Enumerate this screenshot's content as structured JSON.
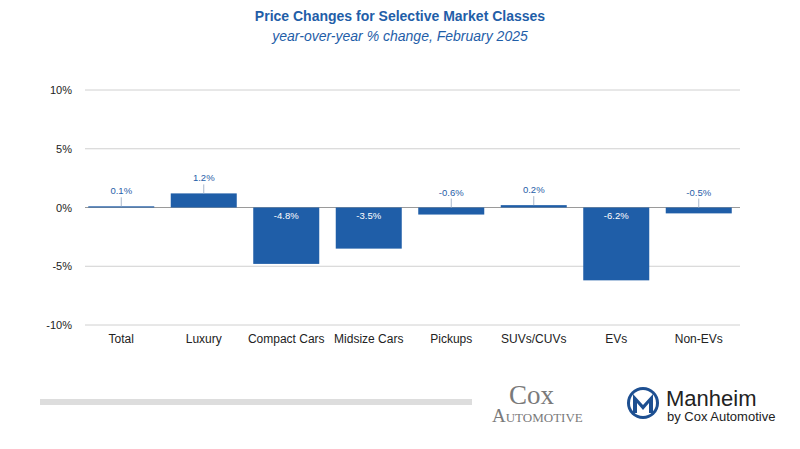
{
  "chart_data": {
    "type": "bar",
    "title": "Price Changes for Selective Market Classes",
    "subtitle": "year-over-year % change, February 2025",
    "categories": [
      "Total",
      "Luxury",
      "Compact Cars",
      "Midsize Cars",
      "Pickups",
      "SUVs/CUVs",
      "EVs",
      "Non-EVs"
    ],
    "values": [
      0.1,
      1.2,
      -4.8,
      -3.5,
      -0.6,
      0.2,
      -6.2,
      -0.5
    ],
    "value_labels": [
      "0.1%",
      "1.2%",
      "-4.8%",
      "-3.5%",
      "-0.6%",
      "0.2%",
      "-6.2%",
      "-0.5%"
    ],
    "color": "#1f5ea8",
    "ylim": [
      -10,
      10
    ],
    "yticks": [
      {
        "value": -10,
        "label": "-10%"
      },
      {
        "value": -5,
        "label": "-5%"
      },
      {
        "value": 0,
        "label": "0%"
      },
      {
        "value": 5,
        "label": "5%"
      },
      {
        "value": 10,
        "label": "10%"
      }
    ],
    "grid": true,
    "data_labels": true
  },
  "branding": {
    "cox_top": "Cox",
    "cox_bottom": "Automotive",
    "manheim": "Manheim",
    "manheim_sub": "by Cox Automotive"
  }
}
